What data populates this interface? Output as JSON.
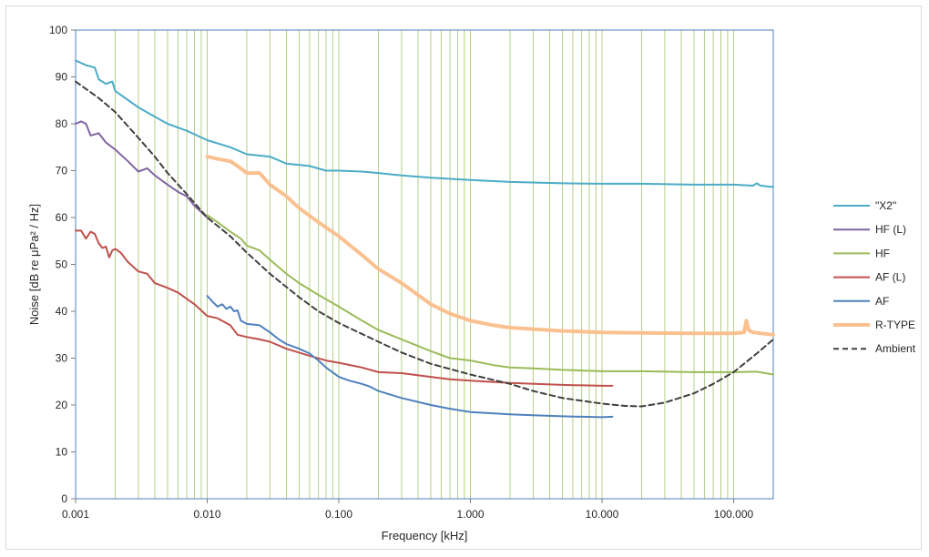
{
  "chart_data": {
    "type": "line",
    "title": "",
    "xlabel": "Frequency [kHz]",
    "ylabel": "Noise [dB re μPa² / Hz]",
    "x_scale": "log",
    "xlim": [
      0.001,
      200
    ],
    "ylim": [
      0,
      100
    ],
    "y_ticks": [
      0,
      10,
      20,
      30,
      40,
      50,
      60,
      70,
      80,
      90,
      100
    ],
    "x_ticks": [
      0.001,
      0.01,
      0.1,
      1,
      10,
      100
    ],
    "x_tick_labels": [
      "0.001",
      "0.010",
      "0.100",
      "1.000",
      "10.000",
      "100.000"
    ],
    "grid": "vertical minor log gridlines",
    "grid_color": "#b5cf8a",
    "legend_position": "right",
    "series": [
      {
        "name": "\"X2\"",
        "color": "#4bacc6",
        "width": 2,
        "dash": "",
        "points": [
          [
            0.001,
            93.5
          ],
          [
            0.0012,
            92.5
          ],
          [
            0.0014,
            92
          ],
          [
            0.0015,
            89.5
          ],
          [
            0.0017,
            88.5
          ],
          [
            0.0019,
            89
          ],
          [
            0.002,
            87
          ],
          [
            0.003,
            83.5
          ],
          [
            0.004,
            81.5
          ],
          [
            0.005,
            80
          ],
          [
            0.007,
            78.5
          ],
          [
            0.01,
            76.5
          ],
          [
            0.015,
            75
          ],
          [
            0.02,
            73.5
          ],
          [
            0.03,
            73
          ],
          [
            0.04,
            71.5
          ],
          [
            0.06,
            71
          ],
          [
            0.08,
            70
          ],
          [
            0.1,
            70
          ],
          [
            0.15,
            69.8
          ],
          [
            0.2,
            69.5
          ],
          [
            0.3,
            69
          ],
          [
            0.5,
            68.5
          ],
          [
            1,
            68
          ],
          [
            2,
            67.6
          ],
          [
            5,
            67.3
          ],
          [
            10,
            67.2
          ],
          [
            20,
            67.2
          ],
          [
            50,
            67
          ],
          [
            100,
            67
          ],
          [
            140,
            66.8
          ],
          [
            150,
            67.3
          ],
          [
            160,
            66.8
          ],
          [
            200,
            66.5
          ]
        ]
      },
      {
        "name": "HF (L)",
        "color": "#8064a2",
        "width": 2,
        "dash": "",
        "points": [
          [
            0.001,
            80
          ],
          [
            0.0011,
            80.5
          ],
          [
            0.0012,
            80
          ],
          [
            0.0013,
            77.5
          ],
          [
            0.0015,
            78
          ],
          [
            0.0017,
            76
          ],
          [
            0.002,
            74.5
          ],
          [
            0.0025,
            72
          ],
          [
            0.003,
            69.8
          ],
          [
            0.0035,
            70.5
          ],
          [
            0.004,
            69
          ],
          [
            0.005,
            67
          ],
          [
            0.006,
            65.5
          ],
          [
            0.007,
            64.5
          ],
          [
            0.008,
            62.5
          ],
          [
            0.01,
            60
          ]
        ]
      },
      {
        "name": "HF",
        "color": "#9bbb59",
        "width": 2,
        "dash": "",
        "points": [
          [
            0.01,
            60.5
          ],
          [
            0.012,
            59
          ],
          [
            0.015,
            57
          ],
          [
            0.018,
            55.5
          ],
          [
            0.02,
            54
          ],
          [
            0.025,
            53
          ],
          [
            0.03,
            51
          ],
          [
            0.04,
            48
          ],
          [
            0.05,
            46
          ],
          [
            0.07,
            43.5
          ],
          [
            0.1,
            41
          ],
          [
            0.15,
            38
          ],
          [
            0.2,
            36
          ],
          [
            0.3,
            34
          ],
          [
            0.5,
            31.5
          ],
          [
            0.7,
            30
          ],
          [
            1,
            29.5
          ],
          [
            1.5,
            28.5
          ],
          [
            2,
            28
          ],
          [
            3,
            27.8
          ],
          [
            5,
            27.5
          ],
          [
            10,
            27.2
          ],
          [
            20,
            27.2
          ],
          [
            50,
            27
          ],
          [
            100,
            27
          ],
          [
            150,
            27.1
          ],
          [
            200,
            26.5
          ]
        ]
      },
      {
        "name": "AF (L)",
        "color": "#c0504d",
        "width": 2,
        "dash": "",
        "points": [
          [
            0.001,
            57.2
          ],
          [
            0.0011,
            57.2
          ],
          [
            0.0012,
            55.5
          ],
          [
            0.0013,
            57
          ],
          [
            0.0014,
            56.5
          ],
          [
            0.0015,
            54.5
          ],
          [
            0.0016,
            53.5
          ],
          [
            0.0017,
            53.8
          ],
          [
            0.0018,
            51.5
          ],
          [
            0.0019,
            53
          ],
          [
            0.002,
            53.3
          ],
          [
            0.0022,
            52.5
          ],
          [
            0.0025,
            50.5
          ],
          [
            0.003,
            48.5
          ],
          [
            0.0035,
            48
          ],
          [
            0.004,
            46
          ],
          [
            0.005,
            45
          ],
          [
            0.006,
            44
          ],
          [
            0.008,
            41.5
          ],
          [
            0.01,
            39
          ],
          [
            0.012,
            38.5
          ],
          [
            0.015,
            37
          ],
          [
            0.017,
            35
          ],
          [
            0.02,
            34.5
          ],
          [
            0.025,
            34
          ],
          [
            0.03,
            33.5
          ],
          [
            0.04,
            32
          ],
          [
            0.06,
            30.5
          ],
          [
            0.08,
            29.5
          ],
          [
            0.1,
            29
          ],
          [
            0.15,
            28
          ],
          [
            0.2,
            27
          ],
          [
            0.3,
            26.8
          ],
          [
            0.5,
            26
          ],
          [
            0.7,
            25.5
          ],
          [
            1,
            25.2
          ],
          [
            2,
            24.7
          ],
          [
            5,
            24.3
          ],
          [
            10,
            24.1
          ],
          [
            12,
            24.1
          ]
        ]
      },
      {
        "name": "AF",
        "color": "#4f81bd",
        "width": 2,
        "dash": "",
        "points": [
          [
            0.01,
            43.3
          ],
          [
            0.011,
            42
          ],
          [
            0.012,
            41
          ],
          [
            0.013,
            41.5
          ],
          [
            0.014,
            40.5
          ],
          [
            0.015,
            41
          ],
          [
            0.016,
            40
          ],
          [
            0.017,
            40.2
          ],
          [
            0.018,
            38
          ],
          [
            0.02,
            37.3
          ],
          [
            0.025,
            37
          ],
          [
            0.03,
            35.5
          ],
          [
            0.035,
            34
          ],
          [
            0.04,
            33
          ],
          [
            0.05,
            32
          ],
          [
            0.06,
            31
          ],
          [
            0.07,
            29.5
          ],
          [
            0.08,
            28
          ],
          [
            0.1,
            26
          ],
          [
            0.12,
            25.2
          ],
          [
            0.15,
            24.5
          ],
          [
            0.17,
            24
          ],
          [
            0.2,
            23
          ],
          [
            0.3,
            21.5
          ],
          [
            0.5,
            20
          ],
          [
            0.7,
            19.2
          ],
          [
            1,
            18.5
          ],
          [
            2,
            18
          ],
          [
            3,
            17.8
          ],
          [
            5,
            17.6
          ],
          [
            10,
            17.4
          ],
          [
            12,
            17.5
          ]
        ]
      },
      {
        "name": "R-TYPE",
        "color": "#fac090",
        "width": 4,
        "dash": "",
        "points": [
          [
            0.01,
            73
          ],
          [
            0.012,
            72.5
          ],
          [
            0.015,
            72
          ],
          [
            0.017,
            71
          ],
          [
            0.02,
            69.5
          ],
          [
            0.025,
            69.5
          ],
          [
            0.03,
            67
          ],
          [
            0.04,
            64.5
          ],
          [
            0.05,
            62
          ],
          [
            0.07,
            59
          ],
          [
            0.1,
            56
          ],
          [
            0.15,
            52
          ],
          [
            0.2,
            49
          ],
          [
            0.3,
            46
          ],
          [
            0.5,
            41.5
          ],
          [
            0.7,
            39.5
          ],
          [
            1,
            38
          ],
          [
            1.5,
            37
          ],
          [
            2,
            36.5
          ],
          [
            3,
            36.2
          ],
          [
            5,
            35.8
          ],
          [
            10,
            35.5
          ],
          [
            20,
            35.4
          ],
          [
            50,
            35.3
          ],
          [
            100,
            35.3
          ],
          [
            120,
            35.5
          ],
          [
            125,
            38
          ],
          [
            130,
            36
          ],
          [
            140,
            35.5
          ],
          [
            200,
            35
          ]
        ]
      },
      {
        "name": "Ambient",
        "color": "#404040",
        "width": 2,
        "dash": "6,4",
        "points": [
          [
            0.001,
            89
          ],
          [
            0.0015,
            85.5
          ],
          [
            0.002,
            82.5
          ],
          [
            0.003,
            77
          ],
          [
            0.004,
            73
          ],
          [
            0.005,
            69.5
          ],
          [
            0.007,
            65
          ],
          [
            0.01,
            60
          ],
          [
            0.015,
            56
          ],
          [
            0.02,
            52.5
          ],
          [
            0.03,
            48
          ],
          [
            0.05,
            43
          ],
          [
            0.07,
            40
          ],
          [
            0.1,
            37.5
          ],
          [
            0.2,
            33.5
          ],
          [
            0.3,
            31.2
          ],
          [
            0.5,
            28.8
          ],
          [
            1,
            26.5
          ],
          [
            2,
            24.5
          ],
          [
            3,
            23
          ],
          [
            5,
            21.5
          ],
          [
            10,
            20.3
          ],
          [
            15,
            19.8
          ],
          [
            20,
            19.7
          ],
          [
            30,
            20.5
          ],
          [
            50,
            22.5
          ],
          [
            70,
            24.5
          ],
          [
            100,
            27
          ],
          [
            150,
            31
          ],
          [
            200,
            34
          ]
        ]
      }
    ]
  }
}
